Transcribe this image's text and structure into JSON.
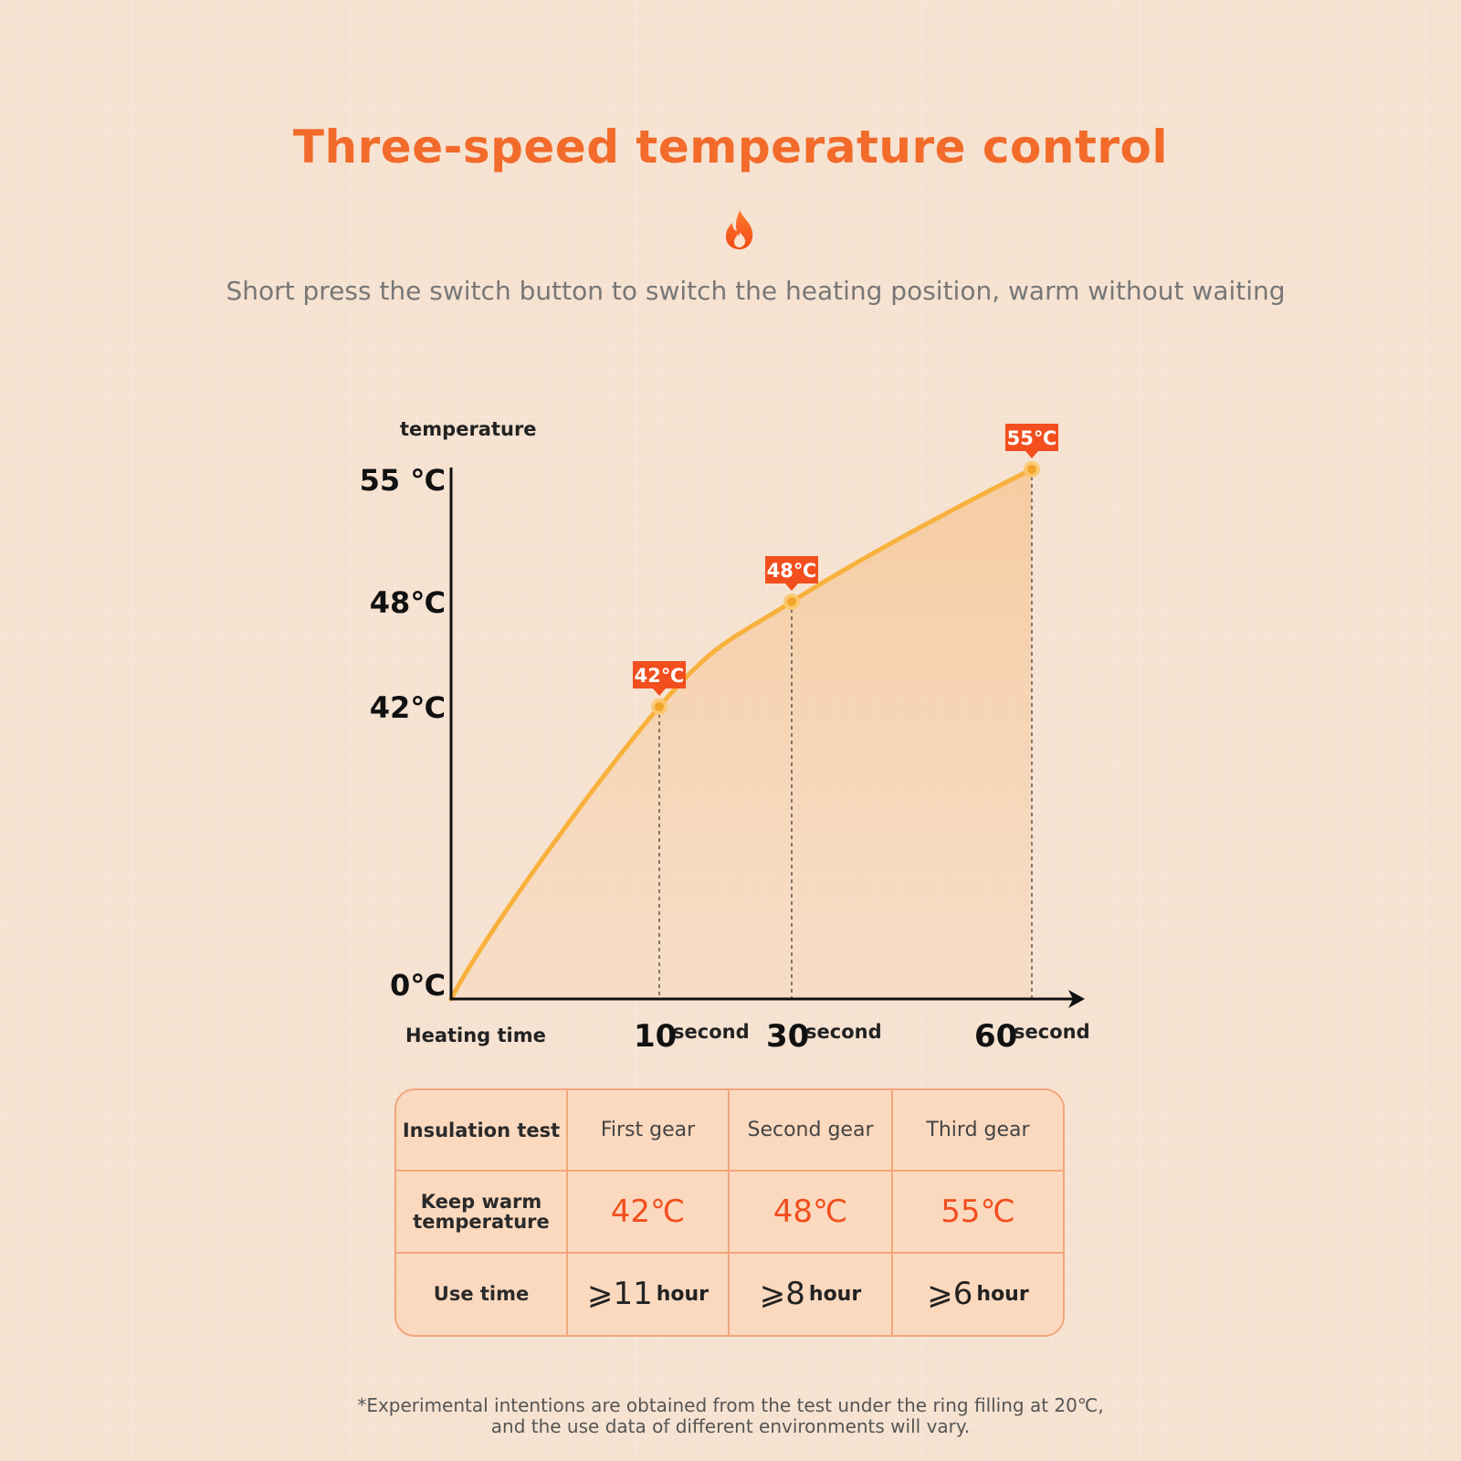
{
  "header": {
    "title": "Three-speed temperature control",
    "subtitle": "Short press the switch button to switch the heating position, warm without waiting"
  },
  "icons": {
    "flame": "flame-icon"
  },
  "colors": {
    "accent": "#f26b2a",
    "curve": "#f8b13d",
    "label_bg": "#f24e1e",
    "table_border": "#f2a57b",
    "table_bg": "#fbd9bf"
  },
  "chart_data": {
    "type": "area",
    "ylabel": "temperature",
    "xlabel": "Heating time",
    "x_unit": "second",
    "y_ticks": [
      "55 ℃",
      "48℃",
      "42℃",
      "0℃"
    ],
    "points": [
      {
        "x": 10,
        "y": 42,
        "x_label": "10",
        "label": "42℃"
      },
      {
        "x": 30,
        "y": 48,
        "x_label": "30",
        "label": "48℃"
      },
      {
        "x": 60,
        "y": 55,
        "x_label": "60",
        "label": "55℃"
      }
    ],
    "origin": {
      "x": 0,
      "y": 0
    },
    "grid": false
  },
  "table": {
    "header": [
      "Insulation test",
      "First gear",
      "Second gear",
      "Third gear"
    ],
    "rows": [
      {
        "label": "Keep warm temperature",
        "values": [
          "42℃",
          "48℃",
          "55℃"
        ]
      },
      {
        "label": "Use time",
        "values": [
          {
            "num": "⩾11",
            "unit": "hour"
          },
          {
            "num": "⩾8",
            "unit": "hour"
          },
          {
            "num": "⩾6",
            "unit": "hour"
          }
        ]
      }
    ]
  },
  "footnote": {
    "line1": "*Experimental intentions are obtained from the test under the ring filling at 20℃,",
    "line2": "and the use data of different environments will vary."
  }
}
